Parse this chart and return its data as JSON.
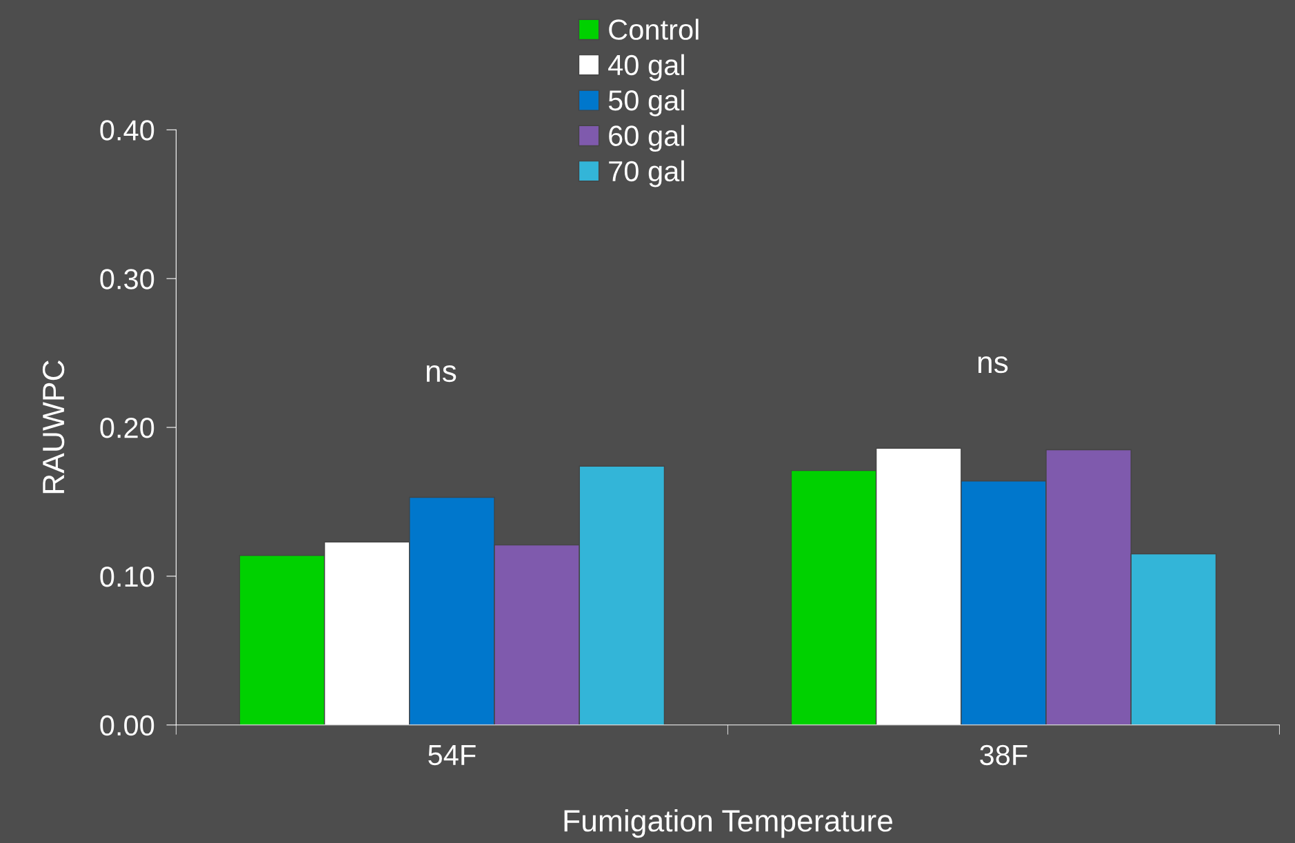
{
  "chart_data": {
    "type": "bar",
    "xlabel": "Fumigation Temperature",
    "ylabel": "RAUWPC",
    "categories": [
      "54F",
      "38F"
    ],
    "series": [
      {
        "name": "Control",
        "color": "#00d100",
        "values": [
          0.114,
          0.171
        ]
      },
      {
        "name": "40 gal",
        "color": "#ffffff",
        "values": [
          0.123,
          0.186
        ]
      },
      {
        "name": "50 gal",
        "color": "#0077cc",
        "values": [
          0.153,
          0.164
        ]
      },
      {
        "name": "60 gal",
        "color": "#7f5aad",
        "values": [
          0.121,
          0.185
        ]
      },
      {
        "name": "70 gal",
        "color": "#33b5d8",
        "values": [
          0.174,
          0.115
        ]
      }
    ],
    "ylim": [
      0,
      0.4
    ],
    "yticks": [
      {
        "value": 0,
        "label": "0.00"
      },
      {
        "value": 0.1,
        "label": "0.10"
      },
      {
        "value": 0.2,
        "label": "0.20"
      },
      {
        "value": 0.3,
        "label": "0.30"
      },
      {
        "value": 0.4,
        "label": "0.40"
      }
    ],
    "annotations": [
      "ns",
      "ns"
    ],
    "grid": false,
    "legend": "top"
  }
}
